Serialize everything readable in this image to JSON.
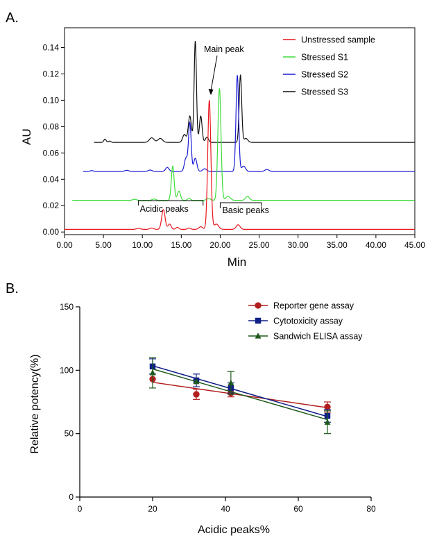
{
  "panel_a_label": "A.",
  "panel_b_label": "B.",
  "chart_data": [
    {
      "type": "line",
      "xlabel": "Min",
      "ylabel": "AU",
      "xlim": [
        0,
        45
      ],
      "ylim": [
        -0.002,
        0.155
      ],
      "x_ticks": [
        "0.00",
        "5.00",
        "10.00",
        "15.00",
        "20.00",
        "25.00",
        "30.00",
        "35.00",
        "40.00",
        "45.00"
      ],
      "y_ticks": [
        "0.00",
        "0.02",
        "0.04",
        "0.06",
        "0.08",
        "0.10",
        "0.12",
        "0.14"
      ],
      "legend_position": "top-right",
      "grid": false,
      "annotations": {
        "main_peak": "Main peak",
        "acidic_peaks": "Acidic peaks",
        "basic_peaks": "Basic peaks"
      },
      "series": [
        {
          "name": "Unstressed sample",
          "color": "#e8161d",
          "start": 0.0,
          "baseline": 0.002,
          "peaks": [
            [
              9.5,
              0.0008,
              0.25
            ],
            [
              11.2,
              0.001,
              0.25
            ],
            [
              12.7,
              0.015,
              0.22
            ],
            [
              13.5,
              0.004,
              0.2
            ],
            [
              14.5,
              0.0015,
              0.2
            ],
            [
              16.0,
              0.001,
              0.2
            ],
            [
              17.5,
              0.002,
              0.25
            ],
            [
              18.6,
              0.098,
              0.2
            ],
            [
              19.5,
              0.004,
              0.3
            ],
            [
              22.3,
              0.0035,
              0.25
            ]
          ]
        },
        {
          "name": "Stressed S1",
          "color": "#3ddc3a",
          "start": 1.0,
          "baseline": 0.024,
          "peaks": [
            [
              9.0,
              0.0008,
              0.25
            ],
            [
              11.5,
              0.001,
              0.25
            ],
            [
              13.9,
              0.026,
              0.18
            ],
            [
              14.7,
              0.007,
              0.2
            ],
            [
              16.0,
              0.0015,
              0.2
            ],
            [
              18.5,
              0.0015,
              0.25
            ],
            [
              19.9,
              0.085,
              0.2
            ],
            [
              21.0,
              0.003,
              0.3
            ],
            [
              23.5,
              0.003,
              0.25
            ]
          ]
        },
        {
          "name": "Stressed S2",
          "color": "#1a1ad6",
          "start": 2.4,
          "baseline": 0.046,
          "peaks": [
            [
              3.5,
              0.0006,
              0.2
            ],
            [
              8.0,
              0.0008,
              0.25
            ],
            [
              11.0,
              0.001,
              0.25
            ],
            [
              13.2,
              0.003,
              0.22
            ],
            [
              15.6,
              0.01,
              0.2
            ],
            [
              16.1,
              0.037,
              0.17
            ],
            [
              16.8,
              0.01,
              0.2
            ],
            [
              18.0,
              0.002,
              0.25
            ],
            [
              22.2,
              0.073,
              0.17
            ],
            [
              23.0,
              0.004,
              0.25
            ],
            [
              26.0,
              0.0015,
              0.25
            ]
          ]
        },
        {
          "name": "Stressed S3",
          "color": "#111111",
          "start": 3.8,
          "baseline": 0.068,
          "peaks": [
            [
              5.2,
              0.0025,
              0.15
            ],
            [
              5.8,
              0.001,
              0.15
            ],
            [
              11.2,
              0.0035,
              0.3
            ],
            [
              12.3,
              0.003,
              0.3
            ],
            [
              15.4,
              0.006,
              0.22
            ],
            [
              16.1,
              0.02,
              0.2
            ],
            [
              16.8,
              0.077,
              0.15
            ],
            [
              17.5,
              0.02,
              0.17
            ],
            [
              18.3,
              0.004,
              0.2
            ],
            [
              22.6,
              0.051,
              0.16
            ],
            [
              23.3,
              0.003,
              0.25
            ]
          ]
        }
      ]
    },
    {
      "type": "scatter",
      "xlabel": "Acidic peaks%",
      "ylabel": "Relative potency(%)",
      "xlim": [
        0,
        80
      ],
      "ylim": [
        0,
        150
      ],
      "x_ticks": [
        "0",
        "20",
        "40",
        "60",
        "80"
      ],
      "y_ticks": [
        "0",
        "50",
        "100",
        "150"
      ],
      "legend_position": "top-right",
      "grid": false,
      "series": [
        {
          "name": "Reporter gene assay",
          "color": "#b21e1e",
          "marker": "circle",
          "x": [
            20,
            32,
            41.5,
            68
          ],
          "y": [
            93,
            81,
            82,
            71
          ],
          "err": [
            0,
            4,
            3,
            4
          ],
          "fit": [
            [
              20,
              90.5
            ],
            [
              68,
              70.5
            ]
          ]
        },
        {
          "name": "Cytotoxicity assay",
          "color": "#0f1f86",
          "marker": "square",
          "x": [
            20,
            32,
            41.5,
            68
          ],
          "y": [
            103,
            92,
            86,
            64
          ],
          "err": [
            6,
            5,
            4,
            5
          ],
          "fit": [
            [
              20,
              103.5
            ],
            [
              68,
              63.5
            ]
          ]
        },
        {
          "name": "Sandwich ELISA assay",
          "color": "#1f5a1c",
          "marker": "triangle",
          "x": [
            20,
            32,
            41.5,
            68
          ],
          "y": [
            98,
            91,
            90,
            59
          ],
          "err": [
            12,
            0,
            9,
            9
          ],
          "fit": [
            [
              20,
              101
            ],
            [
              68,
              61
            ]
          ]
        }
      ]
    }
  ]
}
